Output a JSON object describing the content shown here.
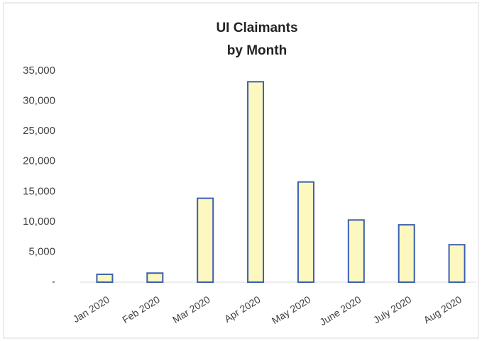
{
  "chart_data": {
    "type": "bar",
    "title": [
      "UI Claimants",
      "by Month"
    ],
    "categories": [
      "Jan 2020",
      "Feb 2020",
      "Mar 2020",
      "Apr 2020",
      "May 2020",
      "June 2020",
      "July 2020",
      "Aug 2020"
    ],
    "values": [
      1300,
      1500,
      13900,
      33200,
      16600,
      10300,
      9500,
      6200
    ],
    "color": "#fdf8c0",
    "edge_color": "#3a5fb0",
    "ylim": [
      0,
      35000
    ],
    "yticks": [
      {
        "value": 0,
        "label": "-"
      },
      {
        "value": 5000,
        "label": "5,000"
      },
      {
        "value": 10000,
        "label": "10,000"
      },
      {
        "value": 15000,
        "label": "15,000"
      },
      {
        "value": 20000,
        "label": "20,000"
      },
      {
        "value": 25000,
        "label": "25,000"
      },
      {
        "value": 30000,
        "label": "30,000"
      },
      {
        "value": 35000,
        "label": "35,000"
      }
    ],
    "grid": false
  }
}
